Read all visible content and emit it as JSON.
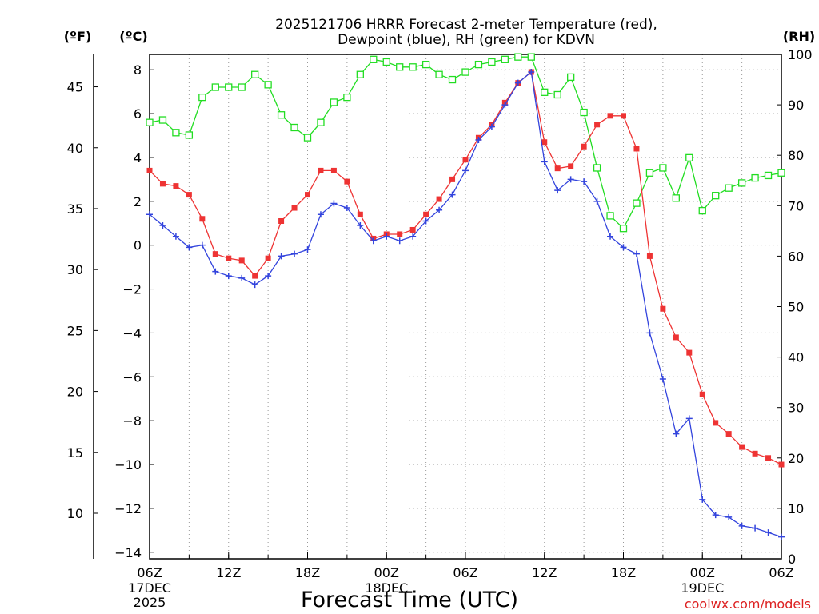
{
  "chart_data": {
    "type": "line",
    "title_line1": "2025121706 HRRR Forecast 2-meter Temperature (red),",
    "title_line2": "Dewpoint (blue), RH (green) for KDVN",
    "xlabel": "Forecast Time (UTC)",
    "credit": "coolwx.com/models",
    "axis_unit_f": "(ºF)",
    "axis_unit_c": "(ºC)",
    "axis_unit_rh": "(RH)",
    "x_range": [
      0,
      48
    ],
    "c_range": [
      -14.3,
      8.7
    ],
    "rh_range": [
      0,
      100
    ],
    "x_ticks": [
      {
        "h": 0,
        "label": "06Z"
      },
      {
        "h": 6,
        "label": "12Z"
      },
      {
        "h": 12,
        "label": "18Z"
      },
      {
        "h": 18,
        "label": "00Z"
      },
      {
        "h": 24,
        "label": "06Z"
      },
      {
        "h": 30,
        "label": "12Z"
      },
      {
        "h": 36,
        "label": "18Z"
      },
      {
        "h": 42,
        "label": "00Z"
      },
      {
        "h": 48,
        "label": "06Z"
      }
    ],
    "date_labels": [
      {
        "h": 0,
        "line1": "17DEC",
        "line2": "2025"
      },
      {
        "h": 18,
        "line1": "18DEC",
        "line2": ""
      },
      {
        "h": 42,
        "line1": "19DEC",
        "line2": ""
      }
    ],
    "c_ticks": [
      {
        "v": 8,
        "label": "8"
      },
      {
        "v": 6,
        "label": "6"
      },
      {
        "v": 4,
        "label": "4"
      },
      {
        "v": 2,
        "label": "2"
      },
      {
        "v": 0,
        "label": "0"
      },
      {
        "v": -2,
        "label": "−2"
      },
      {
        "v": -4,
        "label": "−4"
      },
      {
        "v": -6,
        "label": "−6"
      },
      {
        "v": -8,
        "label": "−8"
      },
      {
        "v": -10,
        "label": "−10"
      },
      {
        "v": -12,
        "label": "−12"
      },
      {
        "v": -14,
        "label": "−14"
      }
    ],
    "f_ticks": [
      {
        "v": 45,
        "label": "45"
      },
      {
        "v": 40,
        "label": "40"
      },
      {
        "v": 35,
        "label": "35"
      },
      {
        "v": 30,
        "label": "30"
      },
      {
        "v": 25,
        "label": "25"
      },
      {
        "v": 20,
        "label": "20"
      },
      {
        "v": 15,
        "label": "15"
      },
      {
        "v": 10,
        "label": "10"
      }
    ],
    "rh_ticks": [
      {
        "v": 100,
        "label": "100"
      },
      {
        "v": 90,
        "label": "90"
      },
      {
        "v": 80,
        "label": "80"
      },
      {
        "v": 70,
        "label": "70"
      },
      {
        "v": 60,
        "label": "60"
      },
      {
        "v": 50,
        "label": "50"
      },
      {
        "v": 40,
        "label": "40"
      },
      {
        "v": 30,
        "label": "30"
      },
      {
        "v": 20,
        "label": "20"
      },
      {
        "v": 10,
        "label": "10"
      },
      {
        "v": 0,
        "label": "0"
      }
    ],
    "series": [
      {
        "name": "Temperature (°C)",
        "axis": "c",
        "color": "#ee3333",
        "marker": "square-filled",
        "values": [
          3.4,
          2.8,
          2.7,
          2.3,
          1.2,
          -0.4,
          -0.6,
          -0.7,
          -1.4,
          -0.6,
          1.1,
          1.7,
          2.3,
          3.4,
          3.4,
          2.9,
          1.4,
          0.3,
          0.5,
          0.5,
          0.7,
          1.4,
          2.1,
          3.0,
          3.9,
          4.9,
          5.5,
          6.5,
          7.4,
          7.9,
          4.7,
          3.5,
          3.6,
          4.5,
          5.5,
          5.9,
          5.9,
          4.4,
          -0.5,
          -2.9,
          -4.2,
          -4.9,
          -6.8,
          -8.1,
          -8.6,
          -9.2,
          -9.5,
          -9.7,
          -10.0
        ]
      },
      {
        "name": "Dewpoint (°C)",
        "axis": "c",
        "color": "#3344dd",
        "marker": "plus",
        "values": [
          1.4,
          0.9,
          0.4,
          -0.1,
          0.0,
          -1.2,
          -1.4,
          -1.5,
          -1.8,
          -1.4,
          -0.5,
          -0.4,
          -0.2,
          1.4,
          1.9,
          1.7,
          0.9,
          0.2,
          0.4,
          0.2,
          0.4,
          1.1,
          1.6,
          2.3,
          3.4,
          4.8,
          5.4,
          6.4,
          7.4,
          7.9,
          3.8,
          2.5,
          3.0,
          2.9,
          2.0,
          0.4,
          -0.1,
          -0.4,
          -4.0,
          -6.1,
          -8.6,
          -7.9,
          -11.6,
          -12.3,
          -12.4,
          -12.8,
          -12.9,
          -13.1,
          -13.3
        ]
      },
      {
        "name": "RH (%)",
        "axis": "rh",
        "color": "#22dd22",
        "marker": "square-open",
        "values": [
          86.5,
          87.0,
          84.5,
          84.0,
          91.5,
          93.5,
          93.5,
          93.5,
          96.0,
          94.0,
          88.0,
          85.5,
          83.5,
          86.5,
          90.5,
          91.5,
          96.0,
          99.0,
          98.5,
          97.5,
          97.5,
          98.0,
          96.0,
          95.0,
          96.5,
          98.0,
          98.5,
          99.0,
          99.5,
          99.5,
          92.5,
          92.0,
          95.5,
          88.5,
          77.5,
          68.0,
          65.5,
          70.5,
          76.5,
          77.5,
          71.5,
          79.5,
          69.0,
          72.0,
          73.5,
          74.5,
          75.5,
          76.0,
          76.5
        ]
      }
    ]
  }
}
